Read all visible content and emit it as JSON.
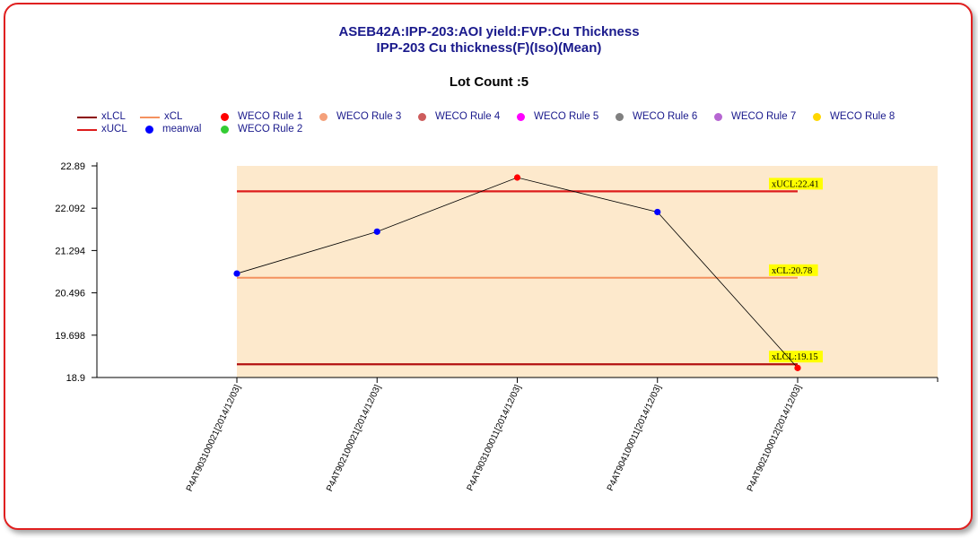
{
  "chart_data": {
    "type": "line",
    "title": "ASEB42A:IPP-203:AOI yield:FVP:Cu Thickness",
    "subtitle": "IPP-203 Cu thickness(F)(Iso)(Mean)",
    "lot_count_label": "Lot Count :5",
    "categories": [
      "P4AT903100021[2014/12/03]",
      "P4AT902100021[2014/12/03]",
      "P4AT903100011[2014/12/03]",
      "P4AT904100011[2014/12/03]",
      "P4AT902100012[2014/12/03]"
    ],
    "series": [
      {
        "name": "meanval",
        "values": [
          20.86,
          21.65,
          22.67,
          22.02,
          19.08
        ],
        "point_rules": [
          "meanval",
          "meanval",
          "WECO Rule 1",
          "meanval",
          "WECO Rule 1"
        ]
      }
    ],
    "control_limits": [
      {
        "name": "xUCL",
        "value": 22.41,
        "label": "xUCL:22.41",
        "color": "#dd1c1c"
      },
      {
        "name": "xCL",
        "value": 20.78,
        "label": "xCL:20.78",
        "color": "#f4915f"
      },
      {
        "name": "xLCL",
        "value": 19.15,
        "label": "xLCL:19.15",
        "color": "#b31010"
      }
    ],
    "yticks": [
      "22.89",
      "22.092",
      "21.294",
      "20.496",
      "19.698",
      "18.9"
    ],
    "ylim": [
      18.9,
      22.89
    ],
    "xlabel": "",
    "ylabel": "",
    "grid": false,
    "legend_position": "top",
    "legend": [
      {
        "name": "xLCL",
        "kind": "line",
        "color": "#8b0000"
      },
      {
        "name": "xCL",
        "kind": "line",
        "color": "#f4915f"
      },
      {
        "name": "WECO Rule 1",
        "kind": "dot",
        "color": "#ff0000"
      },
      {
        "name": "WECO Rule 3",
        "kind": "dot",
        "color": "#f4a07a"
      },
      {
        "name": "WECO Rule 4",
        "kind": "dot",
        "color": "#cd5c5c"
      },
      {
        "name": "WECO Rule 5",
        "kind": "dot",
        "color": "#ff00ff"
      },
      {
        "name": "WECO Rule 6",
        "kind": "dot",
        "color": "#808080"
      },
      {
        "name": "WECO Rule 7",
        "kind": "dot",
        "color": "#b666d2"
      },
      {
        "name": "WECO Rule 8",
        "kind": "dot",
        "color": "#ffd700"
      },
      {
        "name": "xUCL",
        "kind": "line",
        "color": "#dd1c1c"
      },
      {
        "name": "meanval",
        "kind": "dot",
        "color": "#0000ff"
      },
      {
        "name": "WECO Rule 2",
        "kind": "dot",
        "color": "#33cc33"
      }
    ],
    "colors": {
      "plot_band": "#fde9cc",
      "series_line": "#000000",
      "label_background": "#ffff00",
      "title": "#1a1a8c",
      "frame_border": "#e02020"
    }
  }
}
